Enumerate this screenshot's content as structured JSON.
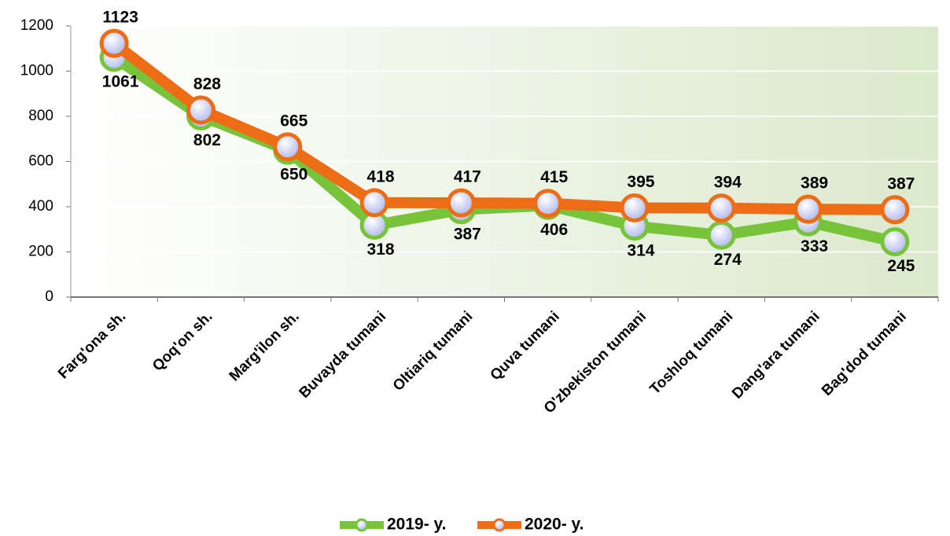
{
  "chart_data": {
    "type": "line",
    "categories": [
      "Farg'ona sh.",
      "Qoq'on sh.",
      "Marg'ilon sh.",
      "Buvayda tumani",
      "Oltiariq tumani",
      "Quva  tumani",
      "O'zbekiston tumani",
      "Toshloq tumani",
      "Dang'ara tumani",
      "Bag'dod tumani"
    ],
    "series": [
      {
        "name": "2019- y.",
        "color": "#77c43a",
        "values": [
          1061,
          802,
          650,
          318,
          387,
          406,
          314,
          274,
          333,
          245
        ]
      },
      {
        "name": "2020- y.",
        "color": "#ed6d17",
        "values": [
          1123,
          828,
          665,
          418,
          417,
          415,
          395,
          394,
          389,
          387
        ]
      }
    ],
    "ylim": [
      0,
      1200
    ],
    "yticks": [
      0,
      200,
      400,
      600,
      800,
      1000,
      1200
    ],
    "grid": true,
    "legend": "bottom"
  }
}
